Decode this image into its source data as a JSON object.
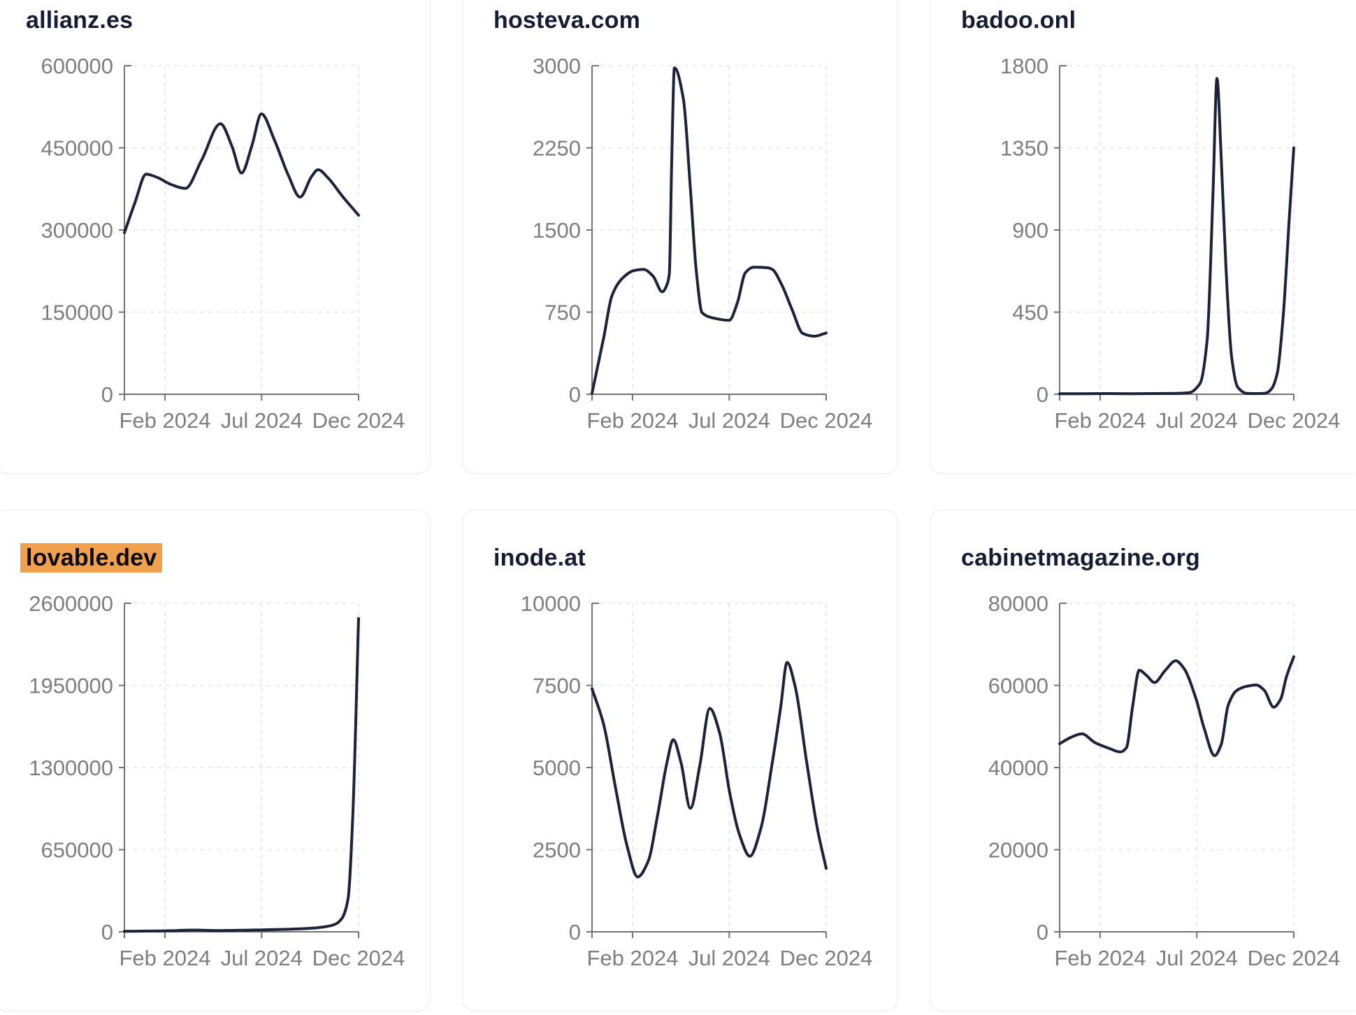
{
  "page": {
    "background": "#ffffff"
  },
  "colors": {
    "line": "#1c2238",
    "title": "#151c33",
    "highlight_background": "#f0a150",
    "highlight_text": "#0b0b0b",
    "axis": "#737373",
    "axis_label": "#7e7e7e",
    "gridline": "#e7e7ea",
    "card_border": "#e9e9f1"
  },
  "chart_data": [
    {
      "type": "line",
      "title": "allianz.es",
      "highlighted": false,
      "x_ticks": [
        {
          "label": "Feb 2024",
          "t": 0.173
        },
        {
          "label": "Jul 2024",
          "t": 0.586
        },
        {
          "label": "Dec 2024",
          "t": 1.0
        }
      ],
      "y_ticks": [
        0,
        150000,
        300000,
        450000,
        600000
      ],
      "ylim": [
        0,
        600000
      ],
      "points": [
        [
          0.0,
          295000
        ],
        [
          0.045,
          350000
        ],
        [
          0.093,
          402000
        ],
        [
          0.14,
          396000
        ],
        [
          0.2,
          383000
        ],
        [
          0.26,
          376000
        ],
        [
          0.33,
          428000
        ],
        [
          0.41,
          494000
        ],
        [
          0.46,
          452000
        ],
        [
          0.5,
          404000
        ],
        [
          0.545,
          455000
        ],
        [
          0.585,
          512000
        ],
        [
          0.64,
          465000
        ],
        [
          0.7,
          400000
        ],
        [
          0.75,
          360000
        ],
        [
          0.8,
          398000
        ],
        [
          0.827,
          410000
        ],
        [
          0.87,
          395000
        ],
        [
          0.93,
          362000
        ],
        [
          1.0,
          327000
        ]
      ]
    },
    {
      "type": "line",
      "title": "hosteva.com",
      "highlighted": false,
      "x_ticks": [
        {
          "label": "Feb 2024",
          "t": 0.173
        },
        {
          "label": "Jul 2024",
          "t": 0.586
        },
        {
          "label": "Dec 2024",
          "t": 1.0
        }
      ],
      "y_ticks": [
        0,
        750,
        1500,
        2250,
        3000
      ],
      "ylim": [
        0,
        3000
      ],
      "points": [
        [
          0.0,
          10
        ],
        [
          0.05,
          520
        ],
        [
          0.085,
          900
        ],
        [
          0.13,
          1060
        ],
        [
          0.18,
          1130
        ],
        [
          0.22,
          1140
        ],
        [
          0.26,
          1080
        ],
        [
          0.3,
          935
        ],
        [
          0.32,
          1000
        ],
        [
          0.33,
          1100
        ],
        [
          0.34,
          2100
        ],
        [
          0.352,
          2980
        ],
        [
          0.39,
          2700
        ],
        [
          0.42,
          1880
        ],
        [
          0.445,
          1130
        ],
        [
          0.47,
          745
        ],
        [
          0.52,
          695
        ],
        [
          0.586,
          675
        ],
        [
          0.62,
          830
        ],
        [
          0.655,
          1110
        ],
        [
          0.69,
          1160
        ],
        [
          0.75,
          1155
        ],
        [
          0.77,
          1140
        ],
        [
          0.81,
          1000
        ],
        [
          0.855,
          770
        ],
        [
          0.9,
          555
        ],
        [
          0.95,
          530
        ],
        [
          1.0,
          560
        ]
      ]
    },
    {
      "type": "line",
      "title": "badoo.onl",
      "highlighted": false,
      "x_ticks": [
        {
          "label": "Feb 2024",
          "t": 0.173
        },
        {
          "label": "Jul 2024",
          "t": 0.586
        },
        {
          "label": "Dec 2024",
          "t": 1.0
        }
      ],
      "y_ticks": [
        0,
        450,
        900,
        1350,
        1800
      ],
      "ylim": [
        0,
        1800
      ],
      "points": [
        [
          0.0,
          3
        ],
        [
          0.1,
          3
        ],
        [
          0.2,
          4
        ],
        [
          0.3,
          3
        ],
        [
          0.4,
          4
        ],
        [
          0.5,
          5
        ],
        [
          0.55,
          8
        ],
        [
          0.6,
          60
        ],
        [
          0.63,
          300
        ],
        [
          0.655,
          1100
        ],
        [
          0.672,
          1730
        ],
        [
          0.69,
          1300
        ],
        [
          0.71,
          700
        ],
        [
          0.735,
          200
        ],
        [
          0.76,
          40
        ],
        [
          0.8,
          5
        ],
        [
          0.85,
          4
        ],
        [
          0.88,
          6
        ],
        [
          0.905,
          30
        ],
        [
          0.93,
          120
        ],
        [
          0.955,
          430
        ],
        [
          0.98,
          950
        ],
        [
          1.0,
          1350
        ]
      ]
    },
    {
      "type": "line",
      "title": "lovable.dev",
      "highlighted": true,
      "x_ticks": [
        {
          "label": "Feb 2024",
          "t": 0.173
        },
        {
          "label": "Jul 2024",
          "t": 0.586
        },
        {
          "label": "Dec 2024",
          "t": 1.0
        }
      ],
      "y_ticks": [
        0,
        650000,
        1300000,
        1950000,
        2600000
      ],
      "ylim": [
        0,
        2600000
      ],
      "points": [
        [
          0.0,
          4000
        ],
        [
          0.1,
          6000
        ],
        [
          0.2,
          9000
        ],
        [
          0.3,
          14000
        ],
        [
          0.4,
          10000
        ],
        [
          0.5,
          12000
        ],
        [
          0.6,
          16000
        ],
        [
          0.7,
          20000
        ],
        [
          0.78,
          26000
        ],
        [
          0.85,
          38000
        ],
        [
          0.9,
          60000
        ],
        [
          0.93,
          110000
        ],
        [
          0.955,
          260000
        ],
        [
          0.975,
          900000
        ],
        [
          1.0,
          2480000
        ]
      ]
    },
    {
      "type": "line",
      "title": "inode.at",
      "highlighted": false,
      "x_ticks": [
        {
          "label": "Feb 2024",
          "t": 0.173
        },
        {
          "label": "Jul 2024",
          "t": 0.586
        },
        {
          "label": "Dec 2024",
          "t": 1.0
        }
      ],
      "y_ticks": [
        0,
        2500,
        5000,
        7500,
        10000
      ],
      "ylim": [
        0,
        10000
      ],
      "points": [
        [
          0.0,
          7400
        ],
        [
          0.05,
          6300
        ],
        [
          0.1,
          4400
        ],
        [
          0.15,
          2600
        ],
        [
          0.195,
          1670
        ],
        [
          0.24,
          2150
        ],
        [
          0.28,
          3550
        ],
        [
          0.32,
          5150
        ],
        [
          0.347,
          5850
        ],
        [
          0.38,
          5150
        ],
        [
          0.42,
          3760
        ],
        [
          0.46,
          5050
        ],
        [
          0.503,
          6800
        ],
        [
          0.545,
          6050
        ],
        [
          0.588,
          4230
        ],
        [
          0.63,
          2950
        ],
        [
          0.674,
          2300
        ],
        [
          0.72,
          3120
        ],
        [
          0.77,
          5150
        ],
        [
          0.806,
          6850
        ],
        [
          0.833,
          8200
        ],
        [
          0.868,
          7450
        ],
        [
          0.915,
          5250
        ],
        [
          0.963,
          3120
        ],
        [
          1.0,
          1930
        ]
      ]
    },
    {
      "type": "line",
      "title": "cabinetmagazine.org",
      "highlighted": false,
      "x_ticks": [
        {
          "label": "Feb 2024",
          "t": 0.173
        },
        {
          "label": "Jul 2024",
          "t": 0.586
        },
        {
          "label": "Dec 2024",
          "t": 1.0
        }
      ],
      "y_ticks": [
        0,
        20000,
        40000,
        60000,
        80000
      ],
      "ylim": [
        0,
        80000
      ],
      "points": [
        [
          0.0,
          45800
        ],
        [
          0.05,
          47400
        ],
        [
          0.095,
          48200
        ],
        [
          0.15,
          46100
        ],
        [
          0.21,
          44700
        ],
        [
          0.26,
          43800
        ],
        [
          0.285,
          44800
        ],
        [
          0.312,
          55000
        ],
        [
          0.34,
          63700
        ],
        [
          0.37,
          62500
        ],
        [
          0.405,
          60700
        ],
        [
          0.45,
          63600
        ],
        [
          0.496,
          66000
        ],
        [
          0.53,
          64200
        ],
        [
          0.582,
          56800
        ],
        [
          0.617,
          49600
        ],
        [
          0.662,
          42900
        ],
        [
          0.69,
          45600
        ],
        [
          0.72,
          55200
        ],
        [
          0.757,
          58800
        ],
        [
          0.8,
          59800
        ],
        [
          0.84,
          60100
        ],
        [
          0.874,
          58800
        ],
        [
          0.914,
          54700
        ],
        [
          0.945,
          56800
        ],
        [
          0.968,
          62000
        ],
        [
          1.0,
          67000
        ]
      ]
    }
  ]
}
